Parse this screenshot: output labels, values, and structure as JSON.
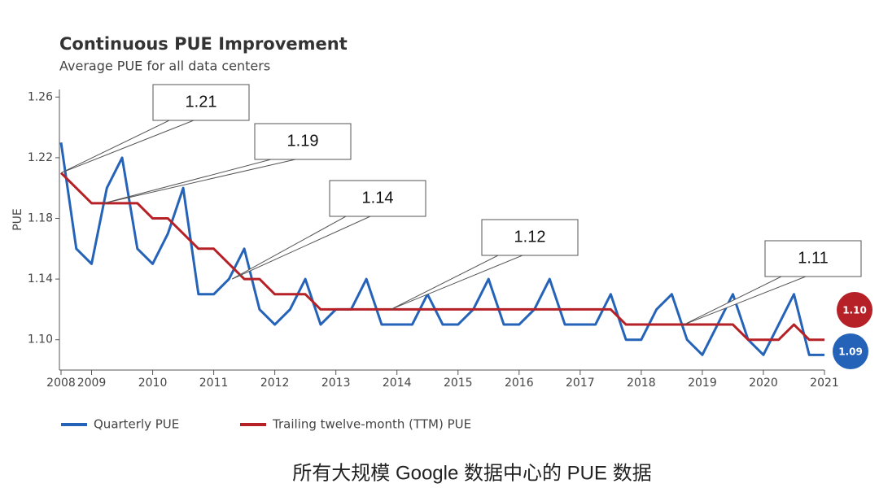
{
  "chart_data": {
    "type": "line",
    "title": "Continuous PUE Improvement",
    "subtitle": "Average PUE for all data centers",
    "y_label": "PUE",
    "caption": "所有大规模 Google 数据中心的 PUE 数据",
    "x": [
      2008.5,
      2008.75,
      2009,
      2009.25,
      2009.5,
      2009.75,
      2010,
      2010.25,
      2010.5,
      2010.75,
      2011,
      2011.25,
      2011.5,
      2011.75,
      2012,
      2012.25,
      2012.5,
      2012.75,
      2013,
      2013.25,
      2013.5,
      2013.75,
      2014,
      2014.25,
      2014.5,
      2014.75,
      2015,
      2015.25,
      2015.5,
      2015.75,
      2016,
      2016.25,
      2016.5,
      2016.75,
      2017,
      2017.25,
      2017.5,
      2017.75,
      2018,
      2018.25,
      2018.5,
      2018.75,
      2019,
      2019.25,
      2019.5,
      2019.75,
      2020,
      2020.25,
      2020.5,
      2020.75,
      2021
    ],
    "series": [
      {
        "name": "Quarterly PUE",
        "color": "#2563b8",
        "end_label": "1.09",
        "values": [
          1.23,
          1.16,
          1.15,
          1.2,
          1.22,
          1.16,
          1.15,
          1.17,
          1.2,
          1.13,
          1.13,
          1.14,
          1.16,
          1.12,
          1.11,
          1.12,
          1.14,
          1.11,
          1.12,
          1.12,
          1.14,
          1.11,
          1.11,
          1.11,
          1.13,
          1.11,
          1.11,
          1.12,
          1.14,
          1.11,
          1.11,
          1.12,
          1.14,
          1.11,
          1.11,
          1.11,
          1.13,
          1.1,
          1.1,
          1.12,
          1.13,
          1.1,
          1.09,
          1.11,
          1.13,
          1.1,
          1.09,
          1.11,
          1.13,
          1.09,
          1.09
        ]
      },
      {
        "name": "Trailing twelve-month (TTM) PUE",
        "color": "#b52126",
        "end_label": "1.10",
        "values": [
          1.21,
          1.2,
          1.19,
          1.19,
          1.19,
          1.19,
          1.18,
          1.18,
          1.17,
          1.16,
          1.16,
          1.15,
          1.14,
          1.14,
          1.13,
          1.13,
          1.13,
          1.12,
          1.12,
          1.12,
          1.12,
          1.12,
          1.12,
          1.12,
          1.12,
          1.12,
          1.12,
          1.12,
          1.12,
          1.12,
          1.12,
          1.12,
          1.12,
          1.12,
          1.12,
          1.12,
          1.12,
          1.11,
          1.11,
          1.11,
          1.11,
          1.11,
          1.11,
          1.11,
          1.11,
          1.1,
          1.1,
          1.1,
          1.11,
          1.1,
          1.1
        ]
      }
    ],
    "xlim": [
      2008.5,
      2021
    ],
    "xticks": [
      {
        "value": 2008.5,
        "label": "2008"
      },
      2009,
      2010,
      2011,
      2012,
      2013,
      2014,
      2015,
      2016,
      2017,
      2018,
      2019,
      2020,
      2021
    ],
    "ylim": [
      1.08,
      1.265
    ],
    "yticks": [
      {
        "value": 1.1,
        "label": "1.10"
      },
      1.14,
      1.18,
      1.22,
      1.26
    ],
    "annotations": [
      {
        "text": "1.21",
        "x": 2008.5,
        "y": 1.21
      },
      {
        "text": "1.19",
        "x": 2009.2,
        "y": 1.19
      },
      {
        "text": "1.14",
        "x": 2011.3,
        "y": 1.14
      },
      {
        "text": "1.12",
        "x": 2013.9,
        "y": 1.12
      },
      {
        "text": "1.11",
        "x": 2018.7,
        "y": 1.11
      }
    ]
  }
}
